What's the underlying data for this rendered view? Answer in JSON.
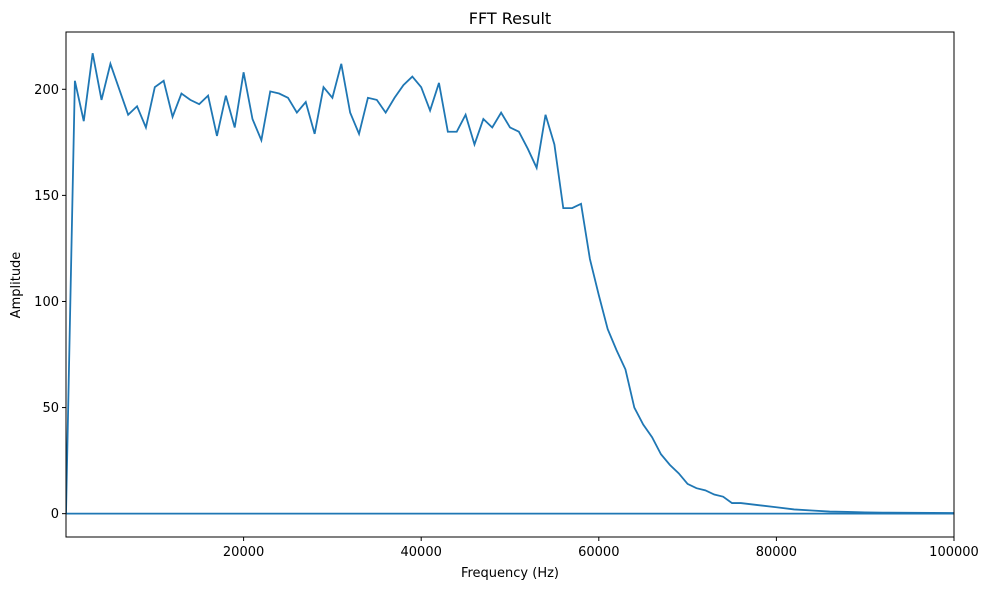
{
  "chart_data": {
    "type": "line",
    "title": "FFT Result",
    "xlabel": "Frequency (Hz)",
    "ylabel": "Amplitude",
    "xlim": [
      0,
      100000
    ],
    "ylim": [
      -11,
      227
    ],
    "x_ticks": [
      20000,
      40000,
      60000,
      80000,
      100000
    ],
    "x_tick_labels": [
      "20000",
      "40000",
      "60000",
      "80000",
      "100000"
    ],
    "y_ticks": [
      0,
      50,
      100,
      150,
      200
    ],
    "y_tick_labels": [
      "0",
      "50",
      "100",
      "150",
      "200"
    ],
    "grid": false,
    "legend": "none",
    "colors": {
      "line": "#1f77b4"
    },
    "series": [
      {
        "x": [
          0,
          1000,
          2000,
          3000,
          4000,
          5000,
          6000,
          7000,
          8000,
          9000,
          10000,
          11000,
          12000,
          13000,
          14000,
          15000,
          16000,
          17000,
          18000,
          19000,
          20000,
          21000,
          22000,
          23000,
          24000,
          25000,
          26000,
          27000,
          28000,
          29000,
          30000,
          31000,
          32000,
          33000,
          34000,
          35000,
          36000,
          37000,
          38000,
          39000,
          40000,
          41000,
          42000,
          43000,
          44000,
          45000,
          46000,
          47000,
          48000,
          49000,
          50000,
          51000,
          52000,
          53000,
          54000,
          55000,
          56000,
          57000,
          58000,
          59000,
          60000,
          61000,
          62000,
          63000,
          64000,
          65000,
          66000,
          67000,
          68000,
          69000,
          70000,
          71000,
          72000,
          73000,
          74000,
          75000,
          76000,
          78000,
          80000,
          82000,
          84000,
          86000,
          88000,
          90000,
          92000,
          95000,
          100000
        ],
        "values": [
          0,
          204,
          185,
          217,
          195,
          212,
          200,
          188,
          192,
          182,
          201,
          204,
          187,
          198,
          195,
          193,
          197,
          178,
          197,
          182,
          208,
          186,
          176,
          199,
          198,
          196,
          189,
          194,
          179,
          201,
          196,
          212,
          189,
          179,
          196,
          195,
          189,
          196,
          202,
          206,
          201,
          190,
          203,
          180,
          180,
          188,
          174,
          186,
          182,
          189,
          182,
          180,
          172,
          163,
          188,
          174,
          144,
          144,
          146,
          120,
          103,
          87,
          77,
          68,
          50,
          42,
          36,
          28,
          23,
          19,
          14,
          12,
          11,
          9,
          8,
          5,
          5,
          4,
          3,
          2,
          1.5,
          1,
          0.8,
          0.6,
          0.5,
          0.4,
          0.3
        ],
        "note_x_offset": 0
      },
      {
        "x": [
          0,
          100000
        ],
        "values": [
          0,
          0
        ]
      }
    ]
  }
}
